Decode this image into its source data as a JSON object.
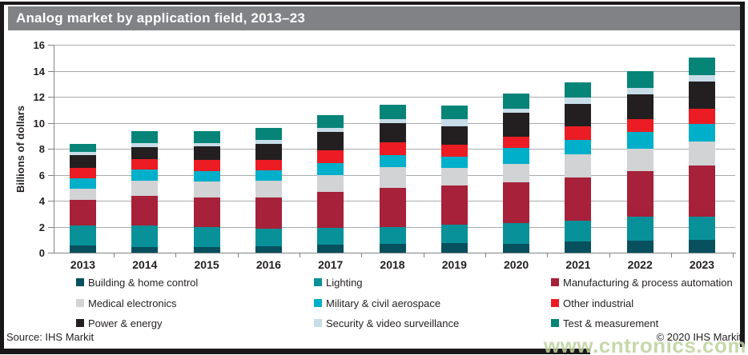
{
  "title": "Analog market by application field, 2013–23",
  "footer": {
    "source": "Source: IHS Markit",
    "copyright": "© 2020 IHS Markit"
  },
  "watermark": "www.cntronics.com",
  "colors": {
    "title_bar": "#808285",
    "frame_border": "#1a1718",
    "gridline": "#a8aaad",
    "axis": "#808285",
    "text": "#231f20",
    "watermark": "#bed29b"
  },
  "chart_data": {
    "type": "bar",
    "stacked": true,
    "title": "Analog market by application field, 2013–23",
    "xlabel": "",
    "ylabel": "Billions of dollars",
    "ylim": [
      0,
      16
    ],
    "ytick_step": 2,
    "grid": true,
    "legend_position": "bottom",
    "categories": [
      "2013",
      "2014",
      "2015",
      "2016",
      "2017",
      "2018",
      "2019",
      "2020",
      "2021",
      "2022",
      "2023"
    ],
    "series": [
      {
        "name": "Building & home control",
        "color": "#07505e",
        "values": [
          0.55,
          0.45,
          0.45,
          0.5,
          0.6,
          0.7,
          0.75,
          0.7,
          0.85,
          0.9,
          1.0
        ]
      },
      {
        "name": "Lighting",
        "color": "#089199",
        "values": [
          1.55,
          1.65,
          1.5,
          1.35,
          1.3,
          1.3,
          1.4,
          1.55,
          1.6,
          1.85,
          1.8
        ]
      },
      {
        "name": "Manufacturing & process automation",
        "color": "#a62139",
        "values": [
          1.95,
          2.3,
          2.3,
          2.4,
          2.75,
          3.0,
          3.0,
          3.15,
          3.35,
          3.5,
          3.9
        ]
      },
      {
        "name": "Medical electronics",
        "color": "#d1d3d4",
        "values": [
          0.85,
          1.15,
          1.25,
          1.3,
          1.35,
          1.6,
          1.35,
          1.45,
          1.75,
          1.75,
          1.85
        ]
      },
      {
        "name": "Military & civil aerospace",
        "color": "#00afca",
        "values": [
          0.8,
          0.85,
          0.8,
          0.8,
          0.9,
          0.9,
          0.9,
          1.2,
          1.15,
          1.3,
          1.35
        ]
      },
      {
        "name": "Other industrial",
        "color": "#ec1c24",
        "values": [
          0.85,
          0.8,
          0.85,
          0.8,
          1.0,
          1.0,
          0.9,
          0.9,
          1.0,
          1.0,
          1.15
        ]
      },
      {
        "name": "Power & energy",
        "color": "#231f20",
        "values": [
          0.95,
          0.95,
          1.05,
          1.2,
          1.4,
          1.5,
          1.4,
          1.8,
          1.75,
          1.9,
          2.15
        ]
      },
      {
        "name": "Security & video surveillance",
        "color": "#c7dde8",
        "values": [
          0.25,
          0.3,
          0.25,
          0.35,
          0.3,
          0.3,
          0.55,
          0.35,
          0.5,
          0.5,
          0.45
        ]
      },
      {
        "name": "Test & measurement",
        "color": "#068478",
        "values": [
          0.6,
          0.9,
          0.9,
          0.9,
          1.0,
          1.1,
          1.1,
          1.15,
          1.15,
          1.3,
          1.35
        ]
      }
    ],
    "totals": [
      8.35,
      9.35,
      9.35,
      9.6,
      10.6,
      11.4,
      11.35,
      12.25,
      13.1,
      14.0,
      15.0
    ]
  }
}
